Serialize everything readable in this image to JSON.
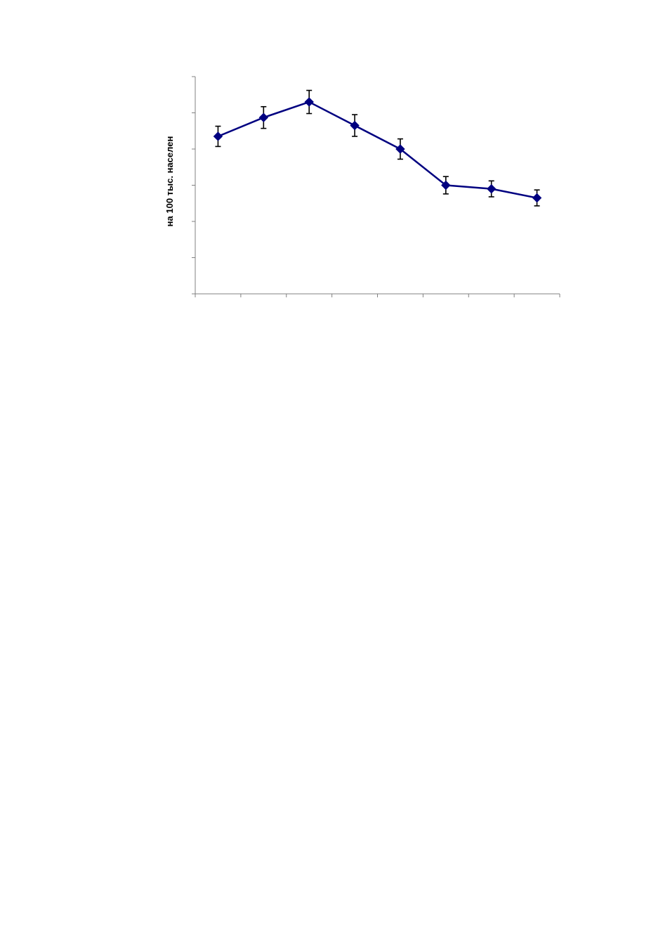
{
  "chart_data": {
    "type": "line",
    "title": "",
    "xlabel": "",
    "ylabel": "на 100 тыс. населен",
    "x": [
      1,
      2,
      3,
      4,
      5,
      6,
      7,
      8
    ],
    "ylim": [
      0,
      6
    ],
    "y_ticks": [
      0,
      1,
      2,
      3,
      4,
      5,
      6
    ],
    "grid": false,
    "series": [
      {
        "values": [
          4.35,
          4.87,
          5.3,
          4.65,
          4.0,
          3.0,
          2.9,
          2.65
        ],
        "error": [
          0.28,
          0.3,
          0.32,
          0.3,
          0.28,
          0.24,
          0.22,
          0.22
        ],
        "color": "#000080",
        "marker": "diamond"
      }
    ]
  }
}
